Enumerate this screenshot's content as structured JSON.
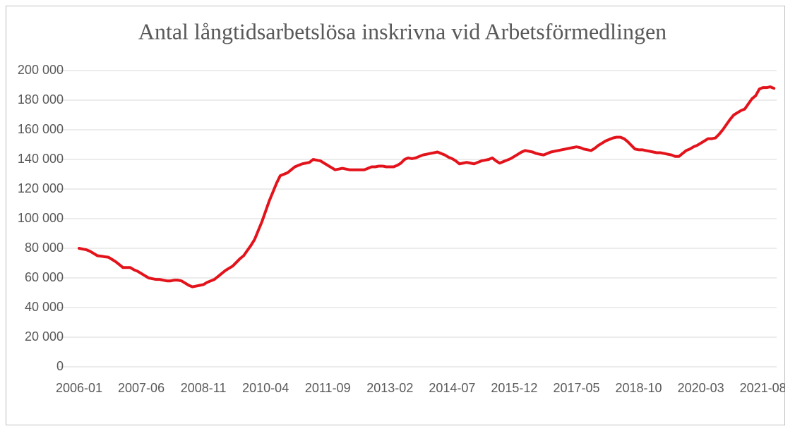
{
  "chart_data": {
    "type": "line",
    "title": "Antal långtidsarbetslösa inskrivna vid Arbetsförmedlingen",
    "categories": [
      "2006-01",
      null,
      null,
      null,
      null,
      null,
      null,
      null,
      null,
      null,
      null,
      null,
      null,
      null,
      null,
      null,
      null,
      "2007-06",
      null,
      null,
      null,
      null,
      null,
      null,
      null,
      null,
      null,
      null,
      null,
      null,
      null,
      null,
      null,
      null,
      "2008-11",
      null,
      null,
      null,
      null,
      null,
      null,
      null,
      null,
      null,
      null,
      null,
      null,
      null,
      null,
      null,
      null,
      "2010-04",
      null,
      null,
      null,
      null,
      null,
      null,
      null,
      null,
      null,
      null,
      null,
      null,
      null,
      null,
      null,
      null,
      "2011-09",
      null,
      null,
      null,
      null,
      null,
      null,
      null,
      null,
      null,
      null,
      null,
      null,
      null,
      null,
      null,
      null,
      "2013-02",
      null,
      null,
      null,
      null,
      null,
      null,
      null,
      null,
      null,
      null,
      null,
      null,
      null,
      null,
      null,
      null,
      "2014-07",
      null,
      null,
      null,
      null,
      null,
      null,
      null,
      null,
      null,
      null,
      null,
      null,
      null,
      null,
      null,
      null,
      "2015-12",
      null,
      null,
      null,
      null,
      null,
      null,
      null,
      null,
      null,
      null,
      null,
      null,
      null,
      null,
      null,
      null,
      "2017-05",
      null,
      null,
      null,
      null,
      null,
      null,
      null,
      null,
      null,
      null,
      null,
      null,
      null,
      null,
      null,
      null,
      "2018-10",
      null,
      null,
      null,
      null,
      null,
      null,
      null,
      null,
      null,
      null,
      null,
      null,
      null,
      null,
      null,
      null,
      "2020-03",
      null,
      null,
      null,
      null,
      null,
      null,
      null,
      null,
      null,
      null,
      null,
      null,
      null,
      null,
      null,
      null,
      "2021-08",
      null,
      null,
      null
    ],
    "series": [
      {
        "name": "Långtidsarbetslösa",
        "color": "#e3131b",
        "values": [
          80000,
          79500,
          79000,
          78000,
          76500,
          75000,
          74700,
          74300,
          74000,
          72500,
          71000,
          69000,
          67000,
          67000,
          67000,
          65500,
          64500,
          63000,
          61500,
          60000,
          59500,
          59000,
          59000,
          58500,
          58000,
          58000,
          58500,
          58500,
          58000,
          56500,
          55000,
          54000,
          54500,
          55000,
          55500,
          57000,
          58000,
          59000,
          61000,
          63000,
          65000,
          66500,
          68000,
          70500,
          73000,
          75000,
          78500,
          82000,
          86000,
          92000,
          98000,
          105000,
          112000,
          118000,
          124000,
          129000,
          130000,
          131000,
          133000,
          135000,
          136000,
          137000,
          137500,
          138000,
          140000,
          139500,
          139000,
          137500,
          136000,
          134500,
          133000,
          133500,
          134000,
          133500,
          133000,
          133000,
          133000,
          133000,
          133000,
          134000,
          135000,
          135000,
          135500,
          135500,
          135000,
          135000,
          135000,
          136000,
          137500,
          140000,
          141000,
          140500,
          141000,
          142000,
          143000,
          143500,
          144000,
          144500,
          145000,
          144000,
          143000,
          141500,
          140500,
          139000,
          137000,
          137500,
          138000,
          137500,
          137000,
          138000,
          139000,
          139500,
          140000,
          141000,
          139000,
          137500,
          138500,
          139500,
          140500,
          142000,
          143500,
          145000,
          146000,
          145500,
          145000,
          144000,
          143500,
          143000,
          144000,
          145000,
          145500,
          146000,
          146500,
          147000,
          147500,
          148000,
          148500,
          148000,
          147000,
          146500,
          146000,
          147500,
          149500,
          151000,
          152500,
          153500,
          154500,
          155000,
          155000,
          154000,
          152000,
          149500,
          147000,
          146500,
          146500,
          146000,
          145500,
          145000,
          144500,
          144500,
          144000,
          143500,
          143000,
          142000,
          142000,
          144000,
          146000,
          147000,
          148500,
          149500,
          151000,
          152500,
          154000,
          154000,
          154500,
          157000,
          160000,
          163500,
          167000,
          170000,
          171500,
          173000,
          174000,
          177500,
          181000,
          183000,
          187500,
          188500,
          188500,
          189000,
          188000
        ]
      }
    ],
    "ylim": [
      0,
      200000
    ],
    "yticks": [
      0,
      {
        "value": 20000,
        "label": "20 000"
      },
      {
        "value": 40000,
        "label": "40 000"
      },
      {
        "value": 60000,
        "label": "60 000"
      },
      {
        "value": 80000,
        "label": "80 000"
      },
      {
        "value": 100000,
        "label": "100 000"
      },
      {
        "value": 120000,
        "label": "120 000"
      },
      {
        "value": 140000,
        "label": "140 000"
      },
      {
        "value": 160000,
        "label": "160 000"
      },
      {
        "value": 180000,
        "label": "180 000"
      },
      {
        "value": 200000,
        "label": "200 000"
      }
    ],
    "grid": true
  }
}
